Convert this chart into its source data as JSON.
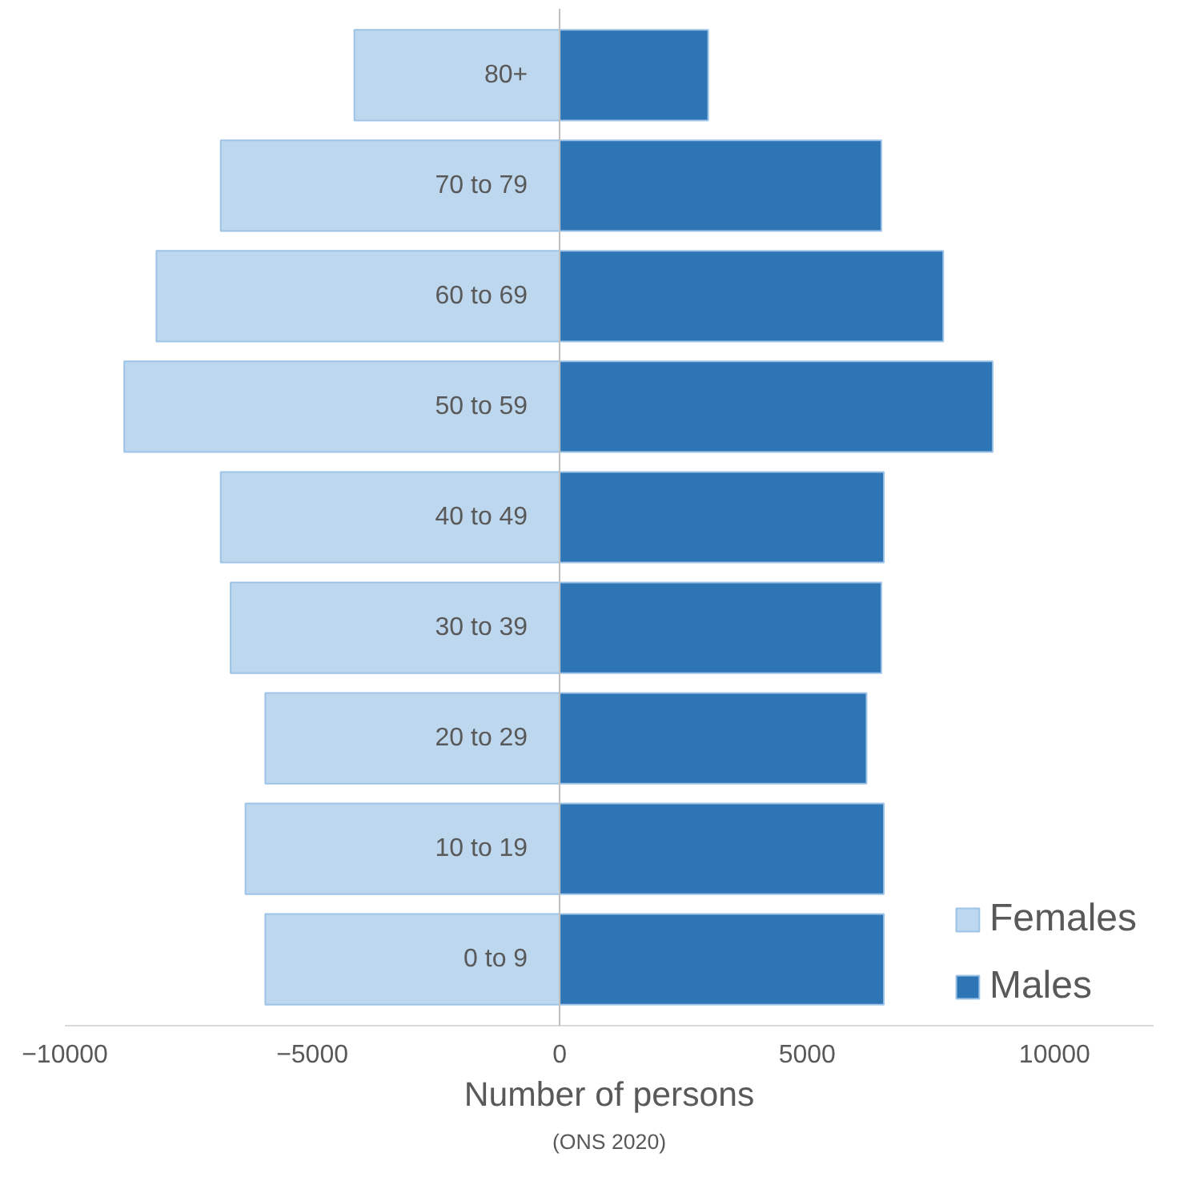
{
  "chart_data": {
    "type": "bar",
    "orientation": "horizontal",
    "stacked": true,
    "categories": [
      "80+",
      "70 to 79",
      "60 to 69",
      "50 to 59",
      "40 to 49",
      "30 to 39",
      "20 to 29",
      "10 to 19",
      "0 to 9"
    ],
    "series": [
      {
        "name": "Females",
        "color": "#bdd7ee",
        "values": [
          -4150,
          -6850,
          -8150,
          -8800,
          -6850,
          -6650,
          -5950,
          -6350,
          -5950
        ]
      },
      {
        "name": "Males",
        "color": "#2e75b6",
        "values": [
          3000,
          6500,
          7750,
          8750,
          6550,
          6500,
          6200,
          6550,
          6550
        ]
      }
    ],
    "xlim": [
      -10000,
      12000
    ],
    "xticks": [
      -10000,
      -5000,
      0,
      5000,
      10000
    ],
    "xlabel": "Number of persons",
    "annotations": [
      "(ONS 2020)"
    ],
    "legend": "bottom right",
    "grid": false
  }
}
